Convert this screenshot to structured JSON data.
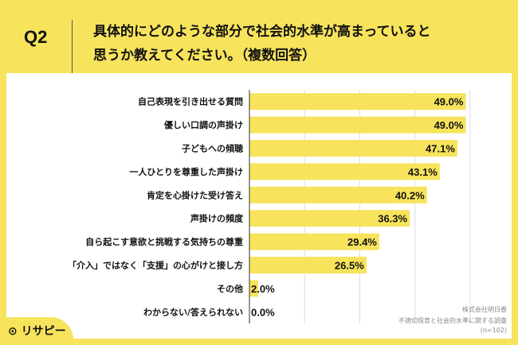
{
  "header": {
    "question": "Q2",
    "title_line1": "具体的にどのような部分で社会的水準が高まっていると",
    "title_line2": "思うか教えてください。（複数回答）"
  },
  "footer": {
    "company": "株式会社明日香",
    "survey": "不適切保育と社会的水準に関する調査",
    "sample": "(n=102)",
    "logo": "リサピー"
  },
  "colors": {
    "bar": "#f7e35c",
    "background": "#f7e35c"
  },
  "chart_data": {
    "type": "bar",
    "orientation": "horizontal",
    "categories": [
      "自己表現を引き出せる質問",
      "優しい口調の声掛け",
      "子どもへの傾聴",
      "一人ひとりを尊重した声掛け",
      "肯定を心掛けた受け答え",
      "声掛けの頻度",
      "自ら起こす意欲と挑戦する気持ちの尊重",
      "「介入」ではなく「支援」の心がけと接し方",
      "その他",
      "わからない/答えられない"
    ],
    "values": [
      49.0,
      49.0,
      47.1,
      43.1,
      40.2,
      36.3,
      29.4,
      26.5,
      2.0,
      0.0
    ],
    "data_labels": [
      "49.0%",
      "49.0%",
      "47.1%",
      "43.1%",
      "40.2%",
      "36.3%",
      "29.4%",
      "26.5%",
      "2.0%",
      "0.0%"
    ],
    "xlim": [
      0,
      50
    ],
    "grid": true
  }
}
